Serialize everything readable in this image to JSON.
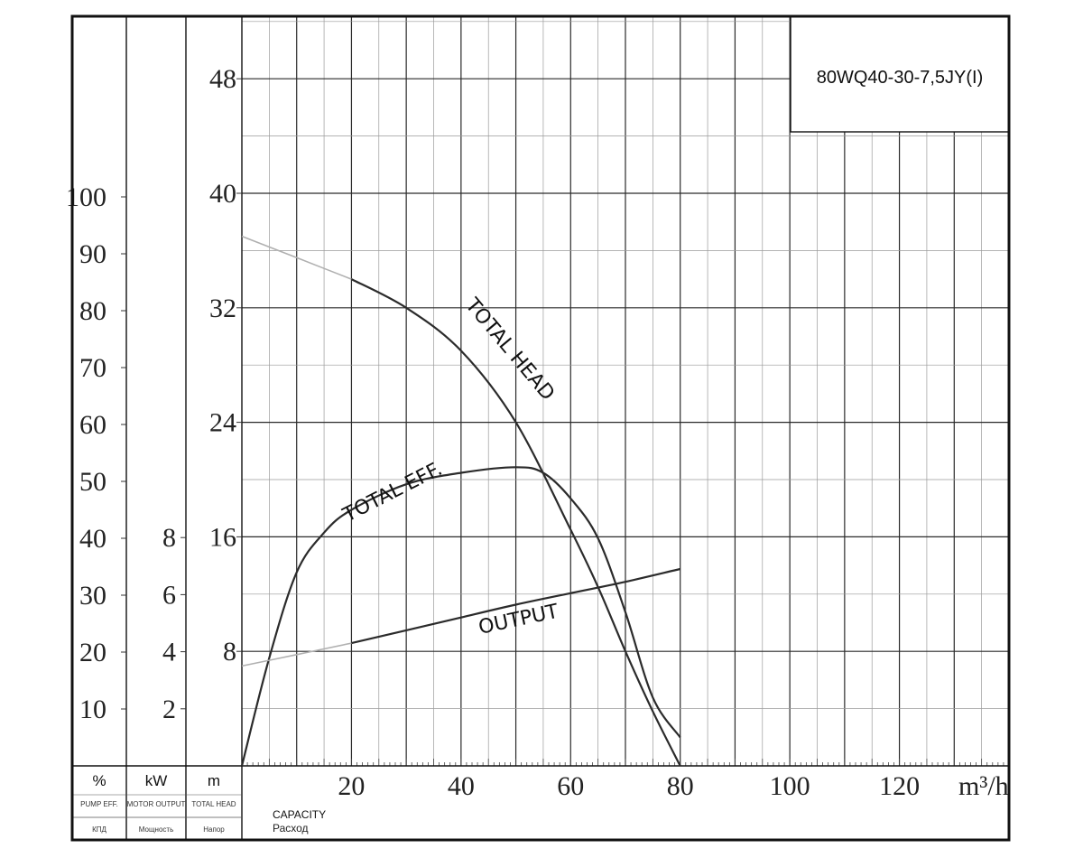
{
  "chart_data": {
    "type": "line",
    "model": "80WQ40-30-7,5JY(I)",
    "x_unit": "m³/h",
    "x_ticks": [
      20,
      40,
      60,
      80,
      100,
      120
    ],
    "xlim": [
      0,
      140
    ],
    "capacity_label": "CAPACITY",
    "capacity_label_ru": "Расход",
    "axes": {
      "efficiency": {
        "unit": "%",
        "sub": "PUMP EFF.",
        "ru": "КПД",
        "ticks": [
          10,
          20,
          30,
          40,
          50,
          60,
          70,
          80,
          90,
          100
        ],
        "ylim": [
          0,
          100
        ]
      },
      "power": {
        "unit": "kW",
        "sub": "MOTOR OUTPUT",
        "ru": "Мощность",
        "ticks": [
          2,
          4,
          6,
          8
        ],
        "ylim": [
          0,
          8
        ]
      },
      "head": {
        "unit": "m",
        "sub": "TOTAL HEAD",
        "ru": "Напор",
        "ticks": [
          8,
          16,
          24,
          32,
          40,
          48
        ],
        "ylim": [
          0,
          52
        ]
      }
    },
    "series": [
      {
        "name": "TOTAL HEAD",
        "axis": "head",
        "x": [
          0,
          10,
          20,
          30,
          40,
          50,
          60,
          65,
          70,
          75,
          80
        ],
        "y": [
          37,
          35.5,
          34,
          32,
          29,
          24,
          16.5,
          12.5,
          8,
          3.8,
          0
        ],
        "faint_until_x": 20
      },
      {
        "name": "TOTAL EFF.",
        "axis": "efficiency",
        "x": [
          0,
          5,
          10,
          15,
          20,
          30,
          40,
          50,
          55,
          60,
          65,
          70,
          75,
          80
        ],
        "y": [
          0,
          19,
          34,
          41,
          45,
          49.5,
          51.5,
          52.5,
          51.5,
          47,
          40,
          27,
          12,
          5
        ],
        "faint_until_x": 0
      },
      {
        "name": "OUTPUT",
        "axis": "power",
        "x": [
          0,
          10,
          20,
          30,
          40,
          50,
          60,
          70,
          80
        ],
        "y": [
          3.5,
          3.9,
          4.3,
          4.75,
          5.2,
          5.65,
          6.05,
          6.45,
          6.9
        ],
        "faint_until_x": 20
      }
    ]
  }
}
